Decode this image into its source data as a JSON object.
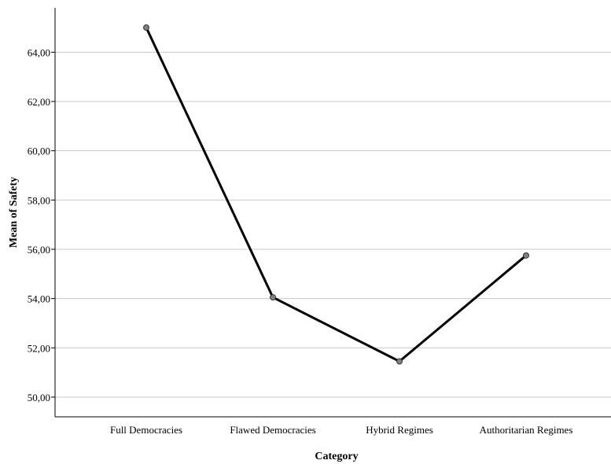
{
  "chart_data": {
    "type": "line",
    "title": "",
    "xlabel": "Category",
    "ylabel": "Mean of Safety",
    "categories": [
      "Full Democracies",
      "Flawed Democracies",
      "Hybrid Regimes",
      "Authoritarian Regimes"
    ],
    "series": [
      {
        "values": [
          65.0,
          54.05,
          51.45,
          55.75
        ],
        "color": "#000000",
        "marker_color": "#808080"
      }
    ],
    "ylim": [
      49.2,
      65.8
    ],
    "yticks": [
      50,
      52,
      54,
      56,
      58,
      60,
      62,
      64
    ],
    "ytick_labels": [
      "50,00",
      "52,00",
      "54,00",
      "56,00",
      "58,00",
      "60,00",
      "62,00",
      "64,00"
    ],
    "grid": "horizontal",
    "grid_color": "#c8c8c8"
  }
}
